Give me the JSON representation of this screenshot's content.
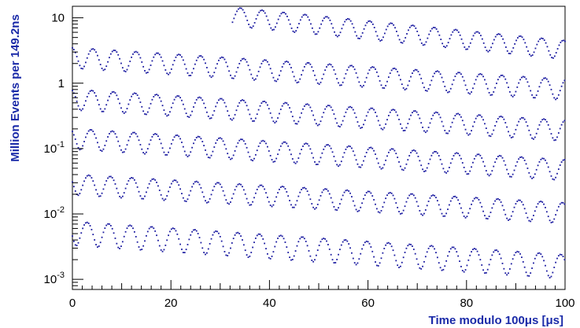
{
  "chart_data": {
    "type": "scatter",
    "title": "",
    "xlabel": "Time modulo 100μs [μs]",
    "ylabel": "Million Events per 149.2ns",
    "xlim": [
      0,
      100
    ],
    "ylim": [
      0.0007,
      15
    ],
    "y_scale": "log",
    "grid": false,
    "legend": "none",
    "marker_color": "#1a1aa0",
    "x_ticks": [
      {
        "value": 0,
        "label": "0"
      },
      {
        "value": 20,
        "label": "20"
      },
      {
        "value": 40,
        "label": "40"
      },
      {
        "value": 60,
        "label": "60"
      },
      {
        "value": 80,
        "label": "80"
      },
      {
        "value": 100,
        "label": "100"
      }
    ],
    "y_ticks": [
      {
        "value": 0.001,
        "base": "10",
        "exp": "-3"
      },
      {
        "value": 0.01,
        "base": "10",
        "exp": "-2"
      },
      {
        "value": 0.1,
        "base": "10",
        "exp": "-1"
      },
      {
        "value": 1,
        "base": "1",
        "exp": ""
      },
      {
        "value": 10,
        "base": "10",
        "exp": ""
      }
    ],
    "wiggle_period_us": 4.37,
    "series": [
      {
        "x_start": 32.5,
        "x_end": 100,
        "amplitude_at_start": 11.0,
        "amplitude_at_end": 3.4,
        "modulation": 0.32,
        "phase": 1.2
      },
      {
        "x_start": 0,
        "x_end": 100,
        "amplitude_at_start": 2.6,
        "amplitude_at_end": 0.85,
        "modulation": 0.35,
        "phase": 0.3
      },
      {
        "x_start": 0,
        "x_end": 100,
        "amplitude_at_start": 0.6,
        "amplitude_at_end": 0.2,
        "modulation": 0.35,
        "phase": 0.6
      },
      {
        "x_start": 0,
        "x_end": 100,
        "amplitude_at_start": 0.15,
        "amplitude_at_end": 0.05,
        "modulation": 0.35,
        "phase": 0.9
      },
      {
        "x_start": 0,
        "x_end": 100,
        "amplitude_at_start": 0.03,
        "amplitude_at_end": 0.011,
        "modulation": 0.35,
        "phase": 1.5
      },
      {
        "x_start": 0,
        "x_end": 100,
        "amplitude_at_start": 0.0055,
        "amplitude_at_end": 0.0017,
        "modulation": 0.4,
        "phase": 2.0
      }
    ]
  }
}
